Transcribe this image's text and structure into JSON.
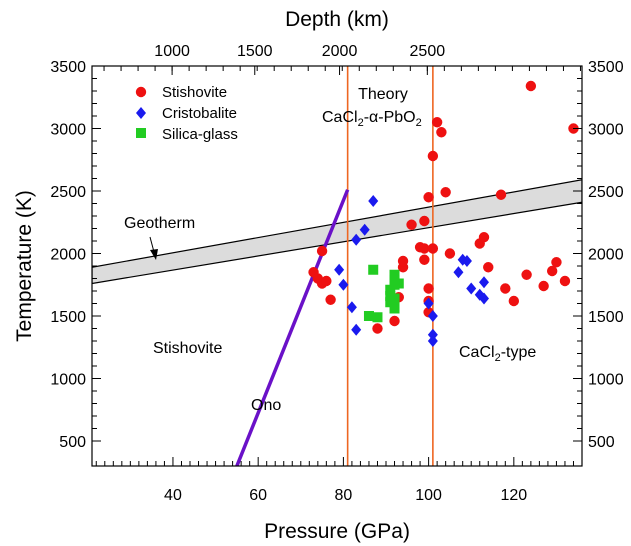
{
  "chart_data": {
    "type": "scatter",
    "title": "",
    "xlabel": "Pressure (GPa)",
    "ylabel": "Temperature (K)",
    "top_xlabel": "Depth (km)",
    "xlim": [
      21,
      136
    ],
    "ylim": [
      300,
      3500
    ],
    "x_ticks": [
      40,
      60,
      80,
      100,
      120
    ],
    "y_ticks": [
      500,
      1000,
      1500,
      2000,
      2500,
      3000,
      3500
    ],
    "depth_ticks": [
      {
        "label": "1000",
        "pressure": 39.8
      },
      {
        "label": "1500",
        "pressure": 59.2
      },
      {
        "label": "2000",
        "pressure": 79.1
      },
      {
        "label": "2500",
        "pressure": 99.7
      }
    ],
    "legend_position": "top-left",
    "series": [
      {
        "name": "Stishovite",
        "marker": "circle",
        "color": "#ee1111",
        "points": [
          [
            73,
            1850
          ],
          [
            74,
            1800
          ],
          [
            75,
            1760
          ],
          [
            75,
            2020
          ],
          [
            76,
            1780
          ],
          [
            77,
            1630
          ],
          [
            88,
            1400
          ],
          [
            92,
            1460
          ],
          [
            93,
            1650
          ],
          [
            94,
            1890
          ],
          [
            94,
            1940
          ],
          [
            96,
            2230
          ],
          [
            98,
            2050
          ],
          [
            99,
            1950
          ],
          [
            99,
            2040
          ],
          [
            99,
            2260
          ],
          [
            100,
            2450
          ],
          [
            100,
            1720
          ],
          [
            100,
            1620
          ],
          [
            100,
            1530
          ],
          [
            101,
            2780
          ],
          [
            101,
            2040
          ],
          [
            102,
            3050
          ],
          [
            103,
            2970
          ],
          [
            104,
            2490
          ],
          [
            105,
            2000
          ],
          [
            112,
            2080
          ],
          [
            113,
            2130
          ],
          [
            114,
            1890
          ],
          [
            117,
            2470
          ],
          [
            118,
            1720
          ],
          [
            120,
            1620
          ],
          [
            123,
            1830
          ],
          [
            124,
            3340
          ],
          [
            127,
            1740
          ],
          [
            129,
            1860
          ],
          [
            130,
            1930
          ],
          [
            132,
            1780
          ],
          [
            134,
            3000
          ]
        ]
      },
      {
        "name": "Cristobalite",
        "marker": "diamond",
        "color": "#1a1aee",
        "points": [
          [
            79,
            1870
          ],
          [
            80,
            1750
          ],
          [
            82,
            1570
          ],
          [
            83,
            1390
          ],
          [
            83,
            2110
          ],
          [
            85,
            2190
          ],
          [
            87,
            2420
          ],
          [
            100,
            1600
          ],
          [
            101,
            1500
          ],
          [
            101,
            1300
          ],
          [
            101,
            1350
          ],
          [
            107,
            1850
          ],
          [
            108,
            1950
          ],
          [
            109,
            1940
          ],
          [
            110,
            1720
          ],
          [
            112,
            1670
          ],
          [
            113,
            1640
          ],
          [
            113,
            1770
          ]
        ]
      },
      {
        "name": "Silica-glass",
        "marker": "square",
        "color": "#22cc22",
        "points": [
          [
            86,
            1500
          ],
          [
            87,
            1870
          ],
          [
            88,
            1490
          ],
          [
            91,
            1610
          ],
          [
            91,
            1660
          ],
          [
            91,
            1710
          ],
          [
            92,
            1750
          ],
          [
            92,
            1790
          ],
          [
            92,
            1560
          ],
          [
            92,
            1830
          ],
          [
            93,
            1760
          ],
          [
            92,
            1640
          ]
        ]
      }
    ],
    "vertical_lines": [
      {
        "x": 81,
        "color": "#ee6622"
      },
      {
        "x": 101,
        "color": "#ee6622"
      }
    ],
    "ono_line": {
      "label": "Ono",
      "color": "#6a11c8",
      "points": [
        [
          55,
          300
        ],
        [
          81,
          2510
        ]
      ]
    },
    "geotherm_band": {
      "label": "Geotherm",
      "lower": [
        [
          21,
          1760
        ],
        [
          136,
          2410
        ]
      ],
      "upper": [
        [
          21,
          1890
        ],
        [
          136,
          2590
        ]
      ]
    },
    "annotations": {
      "theory_line1": "Theory",
      "theory_line2": "CaCl",
      "theory_sub": "2",
      "theory_rest": "-α-PbO",
      "theory_sub2": "2",
      "stishovite_region": "Stishovite",
      "cacl2_region": "CaCl",
      "cacl2_sub": "2",
      "cacl2_rest": "-type"
    }
  }
}
